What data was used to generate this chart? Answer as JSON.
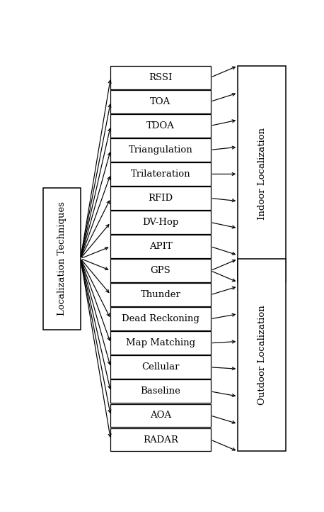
{
  "techniques": [
    "RSSI",
    "TOA",
    "TDOA",
    "Triangulation",
    "Trilateration",
    "RFID",
    "DV-Hop",
    "APIT",
    "GPS",
    "Thunder",
    "Dead Reckoning",
    "Map Matching",
    "Cellular",
    "Baseline",
    "AOA",
    "RADAR"
  ],
  "left_label": "Localization Techniques",
  "indoor_label": "Indoor Localization",
  "outdoor_label": "Outdoor Localization",
  "indoor_indices": [
    0,
    1,
    2,
    3,
    4,
    5,
    6,
    7,
    8
  ],
  "outdoor_indices": [
    8,
    9,
    10,
    11,
    12,
    13,
    14,
    15
  ],
  "box_color": "white",
  "box_edge_color": "black",
  "arrow_color": "black",
  "bg_color": "white",
  "fontsize": 9.5,
  "label_fontsize": 9.5
}
